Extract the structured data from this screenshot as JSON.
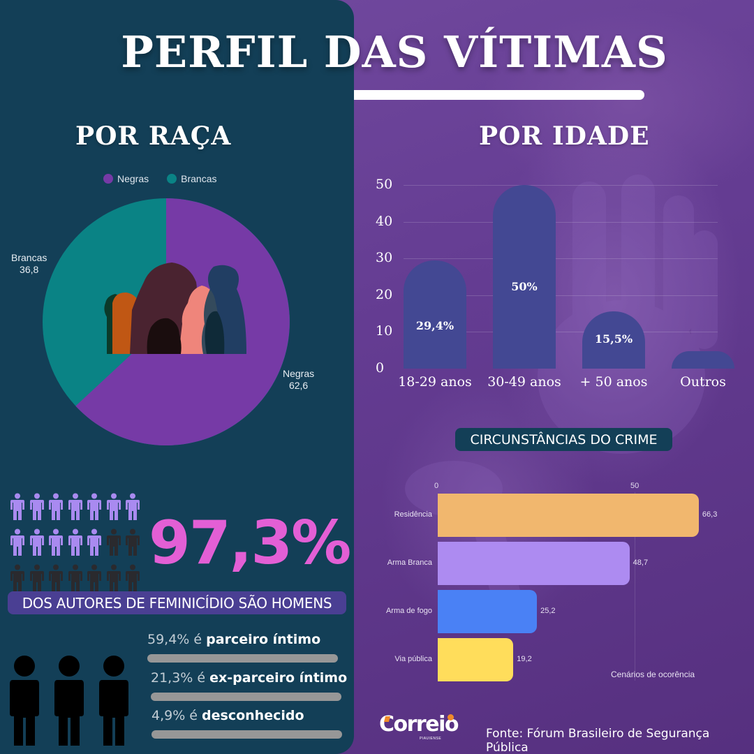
{
  "title": "PERFIL DAS VÍTIMAS",
  "race": {
    "section_title": "POR RAÇA",
    "legend": [
      {
        "label": "Negras",
        "color": "#763aa6"
      },
      {
        "label": "Brancas",
        "color": "#0a8385"
      }
    ],
    "labels": {
      "brancas_name": "Brancas",
      "brancas_value": "36,8",
      "negras_name": "Negras",
      "negras_value": "62,6"
    }
  },
  "authors": {
    "percent": "97,3%",
    "banner": "DOS AUTORES DE FEMINICÍDIO SÃO HOMENS",
    "icon_grid": {
      "total": 21,
      "highlighted": 12,
      "highlight_color": "#a98af0",
      "base_color": "#2a2a2e"
    }
  },
  "relationships": [
    {
      "value": "59,4% é ",
      "label": "parceiro íntimo"
    },
    {
      "value": "21,3% é ",
      "label": "ex-parceiro íntimo"
    },
    {
      "value": "4,9% é ",
      "label": "desconhecido"
    }
  ],
  "age": {
    "section_title": "POR IDADE"
  },
  "circumstances": {
    "title": "CIRCUNSTÂNCIAS DO CRIME",
    "axis_ticks": [
      "0",
      "50"
    ],
    "caption": "Cenários de ocorência"
  },
  "footer": {
    "logo_text": "Correio",
    "logo_sub": "PIAUIENSE",
    "source": "Fonte: Fórum Brasileiro de Segurança Pública"
  },
  "chart_data": [
    {
      "type": "pie",
      "title": "POR RAÇA",
      "categories": [
        "Negras",
        "Brancas"
      ],
      "values": [
        62.6,
        36.8
      ],
      "value_labels": [
        "62,6",
        "36,8"
      ],
      "colors": [
        "#763aa6",
        "#0a8385"
      ],
      "legend_position": "top"
    },
    {
      "type": "bar",
      "title": "POR IDADE",
      "categories": [
        "18-29 anos",
        "30-49 anos",
        "+ 50 anos",
        "Outros"
      ],
      "values": [
        29.4,
        50,
        15.5,
        4.8
      ],
      "value_labels": [
        "29,4%",
        "50%",
        "15,5%",
        ""
      ],
      "y_ticks": [
        "0",
        "10",
        "20",
        "30",
        "40",
        "50"
      ],
      "ylim": [
        0,
        50
      ],
      "grid": true,
      "color": "#434893"
    },
    {
      "type": "bar",
      "orientation": "horizontal",
      "title": "CIRCUNSTÂNCIAS DO CRIME",
      "categories": [
        "Residência",
        "Arma Branca",
        "Arma de fogo",
        "Via pública"
      ],
      "values": [
        66.3,
        48.7,
        25.2,
        19.2
      ],
      "value_labels": [
        "66,3",
        "48,7",
        "25,2",
        "19,2"
      ],
      "colors": [
        "#f1b76e",
        "#ad8bf1",
        "#4a81f5",
        "#ffdd5b"
      ],
      "x_ticks": [
        "0",
        "50"
      ],
      "xlabel": "Cenários de ocorência"
    }
  ]
}
